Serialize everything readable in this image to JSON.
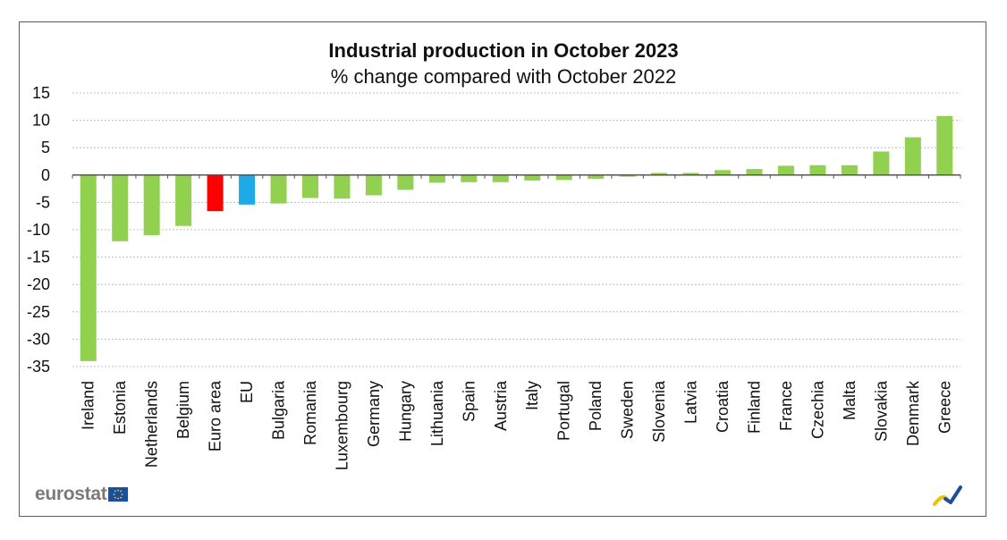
{
  "chart_data": {
    "type": "bar",
    "title": "Industrial production in October 2023",
    "subtitle": "% change compared with October 2022",
    "xlabel": "",
    "ylabel": "",
    "ylim": [
      -35,
      15
    ],
    "yticks": [
      15,
      10,
      5,
      0,
      -5,
      -10,
      -15,
      -20,
      -25,
      -30,
      -35
    ],
    "grid": true,
    "categories": [
      "Ireland",
      "Estonia",
      "Netherlands",
      "Belgium",
      "Euro area",
      "EU",
      "Bulgaria",
      "Romania",
      "Luxembourg",
      "Germany",
      "Hungary",
      "Lithuania",
      "Spain",
      "Austria",
      "Italy",
      "Portugal",
      "Poland",
      "Sweden",
      "Slovenia",
      "Latvia",
      "Croatia",
      "Finland",
      "France",
      "Czechia",
      "Malta",
      "Slovakia",
      "Denmark",
      "Greece"
    ],
    "values": [
      -34.0,
      -12.1,
      -11.0,
      -9.3,
      -6.6,
      -5.4,
      -5.2,
      -4.2,
      -4.3,
      -3.7,
      -2.7,
      -1.4,
      -1.3,
      -1.3,
      -1.0,
      -0.9,
      -0.7,
      -0.3,
      0.4,
      0.4,
      0.9,
      1.1,
      1.7,
      1.8,
      1.8,
      4.3,
      6.9,
      10.8
    ],
    "colors": {
      "country": "#92d050",
      "Euro area": "#ff0000",
      "EU": "#1fa9e8",
      "grid": "#bdbdbd",
      "axis": "#555555"
    }
  },
  "branding": {
    "logo_text": "eurostat",
    "logo_icon": "eu-flag-icon",
    "corner_icon": "eurostat-swoosh-icon"
  }
}
